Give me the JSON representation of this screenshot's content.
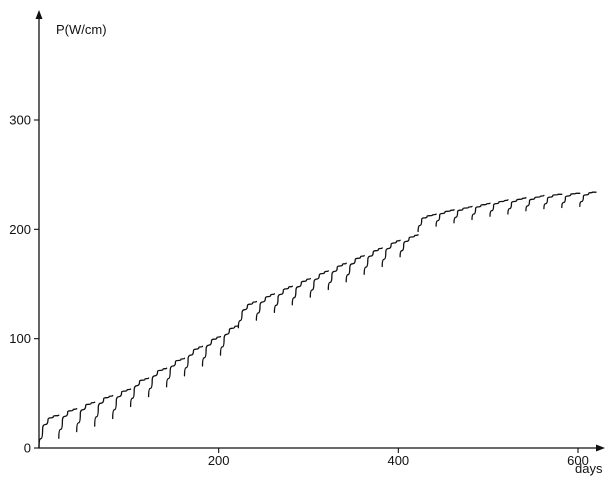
{
  "chart_data": {
    "type": "line",
    "title": "",
    "xlabel": "days",
    "ylabel": "P(W/cm)",
    "xlim": [
      0,
      620
    ],
    "ylim": [
      0,
      380
    ],
    "x_ticks": [
      200,
      400,
      600
    ],
    "x_tick_labels": [
      "200",
      "400",
      "600"
    ],
    "y_ticks": [
      0,
      100,
      200,
      300
    ],
    "y_tick_labels": [
      "0",
      "100",
      "200",
      "300"
    ],
    "grid": false,
    "series": [
      {
        "cycles": [
          {
            "x": [
              0,
              4,
              10,
              16,
              22
            ],
            "y": [
              0,
              17,
              26,
              29,
              30
            ]
          },
          {
            "x": [
              22,
              26,
              32,
              38,
              42
            ],
            "y": [
              9,
              25,
              33,
              35,
              36
            ]
          },
          {
            "x": [
              42,
              46,
              52,
              58,
              62
            ],
            "y": [
              15,
              31,
              39,
              41,
              42
            ]
          },
          {
            "x": [
              62,
              66,
              72,
              78,
              82
            ],
            "y": [
              20,
              37,
              45,
              47,
              48
            ]
          },
          {
            "x": [
              82,
              86,
              92,
              98,
              102
            ],
            "y": [
              27,
              43,
              51,
              53,
              54
            ]
          },
          {
            "x": [
              102,
              106,
              112,
              118,
              122
            ],
            "y": [
              38,
              53,
              61,
              63,
              64
            ]
          },
          {
            "x": [
              122,
              126,
              132,
              138,
              142
            ],
            "y": [
              47,
              62,
              70,
              72,
              73
            ]
          },
          {
            "x": [
              142,
              146,
              152,
              158,
              162
            ],
            "y": [
              56,
              71,
              79,
              81,
              82
            ]
          },
          {
            "x": [
              162,
              166,
              172,
              178,
              182
            ],
            "y": [
              66,
              81,
              89,
              92,
              93
            ]
          },
          {
            "x": [
              182,
              186,
              192,
              198,
              202
            ],
            "y": [
              75,
              90,
              98,
              101,
              102
            ]
          },
          {
            "x": [
              202,
              206,
              212,
              218,
              222
            ],
            "y": [
              85,
              100,
              108,
              111,
              112
            ]
          },
          {
            "x": [
              222,
              226,
              232,
              238,
              242
            ],
            "y": [
              110,
              123,
              130,
              133,
              134
            ]
          },
          {
            "x": [
              242,
              246,
              252,
              258,
              262
            ],
            "y": [
              117,
              130,
              137,
              140,
              141
            ]
          },
          {
            "x": [
              262,
              266,
              272,
              278,
              282
            ],
            "y": [
              124,
              137,
              144,
              147,
              148
            ]
          },
          {
            "x": [
              282,
              286,
              292,
              298,
              302
            ],
            "y": [
              131,
              144,
              151,
              154,
              155
            ]
          },
          {
            "x": [
              302,
              306,
              312,
              318,
              322
            ],
            "y": [
              138,
              151,
              158,
              161,
              162
            ]
          },
          {
            "x": [
              322,
              326,
              332,
              338,
              342
            ],
            "y": [
              145,
              158,
              165,
              168,
              169
            ]
          },
          {
            "x": [
              342,
              346,
              352,
              358,
              362
            ],
            "y": [
              152,
              165,
              172,
              175,
              176
            ]
          },
          {
            "x": [
              362,
              366,
              372,
              378,
              382
            ],
            "y": [
              159,
              172,
              179,
              182,
              183
            ]
          },
          {
            "x": [
              382,
              386,
              392,
              398,
              402
            ],
            "y": [
              166,
              179,
              186,
              189,
              190
            ]
          },
          {
            "x": [
              402,
              406,
              412,
              418,
              422
            ],
            "y": [
              175,
              186,
              192,
              194,
              195
            ]
          },
          {
            "x": [
              422,
              426,
              432,
              438,
              442
            ],
            "y": [
              198,
              209,
              212,
              213,
              214
            ]
          },
          {
            "x": [
              442,
              446,
              452,
              458,
              462
            ],
            "y": [
              203,
              213,
              216,
              217,
              218
            ]
          },
          {
            "x": [
              462,
              466,
              472,
              478,
              482
            ],
            "y": [
              206,
              216,
              219,
              220,
              221
            ]
          },
          {
            "x": [
              482,
              486,
              492,
              498,
              502
            ],
            "y": [
              209,
              219,
              222,
              223,
              224
            ]
          },
          {
            "x": [
              502,
              506,
              512,
              518,
              522
            ],
            "y": [
              212,
              222,
              225,
              226,
              227
            ]
          },
          {
            "x": [
              522,
              526,
              532,
              538,
              542
            ],
            "y": [
              214,
              224,
              227,
              228,
              229
            ]
          },
          {
            "x": [
              542,
              546,
              552,
              558,
              562
            ],
            "y": [
              217,
              226,
              229,
              230,
              231
            ]
          },
          {
            "x": [
              562,
              566,
              572,
              578,
              582
            ],
            "y": [
              219,
              228,
              231,
              232,
              232
            ]
          },
          {
            "x": [
              582,
              586,
              592,
              598,
              602
            ],
            "y": [
              220,
              229,
              232,
              233,
              233
            ]
          },
          {
            "x": [
              602,
              606,
              612,
              616,
              620
            ],
            "y": [
              221,
              230,
              233,
              234,
              234
            ]
          }
        ]
      }
    ]
  }
}
